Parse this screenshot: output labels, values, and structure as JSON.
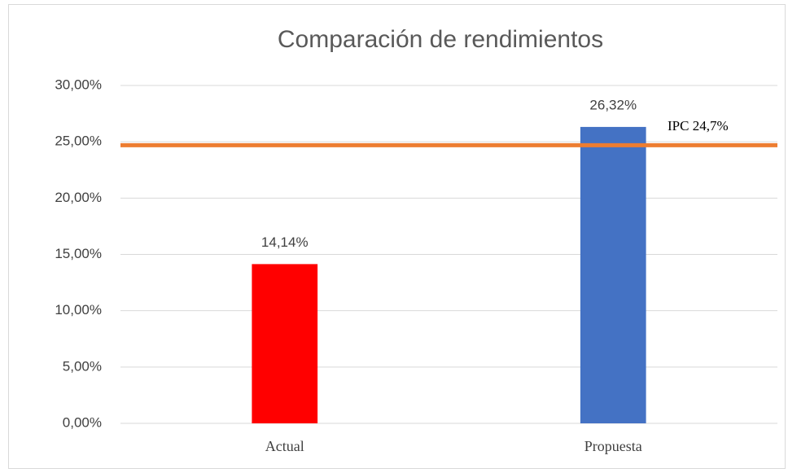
{
  "chart_data": {
    "type": "bar",
    "title": "Comparación de rendimientos",
    "categories": [
      "Actual",
      "Propuesta"
    ],
    "values": [
      14.14,
      26.32
    ],
    "value_labels": [
      "14,14%",
      "26,32%"
    ],
    "colors": [
      "#ff0000",
      "#4472c4"
    ],
    "ylim": [
      0,
      30
    ],
    "yticks": [
      {
        "value": 0,
        "label": "0,00%"
      },
      {
        "value": 5,
        "label": "5,00%"
      },
      {
        "value": 10,
        "label": "10,00%"
      },
      {
        "value": 15,
        "label": "15,00%"
      },
      {
        "value": 20,
        "label": "20,00%"
      },
      {
        "value": 25,
        "label": "25,00%"
      },
      {
        "value": 30,
        "label": "30,00%"
      }
    ],
    "grid": true,
    "reference_line": {
      "value": 24.7,
      "label": "IPC 24,7%",
      "color": "#ed7d31"
    }
  }
}
